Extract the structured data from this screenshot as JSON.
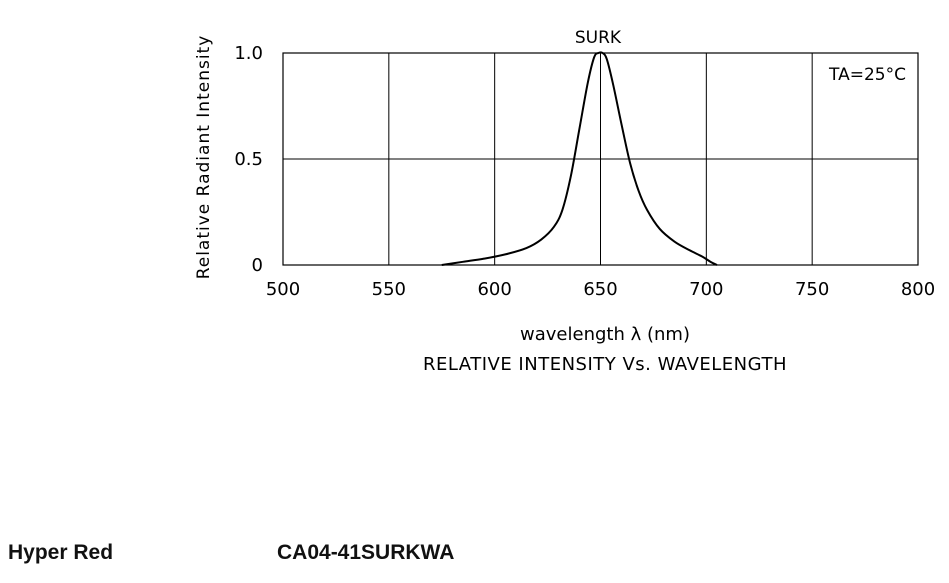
{
  "chart_data": {
    "type": "line",
    "series_label": "SURK",
    "condition_label": "TA=25°C",
    "ylabel": "Relative Radiant Intensity",
    "xlabel": "wavelength λ (nm)",
    "caption": "RELATIVE INTENSITY Vs. WAVELENGTH",
    "xlim": [
      500,
      800
    ],
    "ylim": [
      0,
      1.0
    ],
    "x_ticks": [
      "500",
      "550",
      "600",
      "650",
      "700",
      "750",
      "800"
    ],
    "y_ticks": [
      "0",
      "0.5",
      "1.0"
    ],
    "grid": true,
    "x": [
      575,
      585,
      595,
      605,
      615,
      622,
      628,
      632,
      636,
      640,
      644,
      647,
      649,
      651,
      653,
      656,
      660,
      664,
      668,
      672,
      678,
      685,
      692,
      698,
      702,
      705
    ],
    "y": [
      0.0,
      0.015,
      0.03,
      0.05,
      0.08,
      0.12,
      0.18,
      0.26,
      0.42,
      0.64,
      0.86,
      0.98,
      1.0,
      1.0,
      0.97,
      0.85,
      0.66,
      0.48,
      0.35,
      0.26,
      0.17,
      0.11,
      0.07,
      0.04,
      0.015,
      0.0
    ],
    "color": "#000000"
  },
  "footer": {
    "color_name": "Hyper Red",
    "part_number": "CA04-41SURKWA"
  }
}
